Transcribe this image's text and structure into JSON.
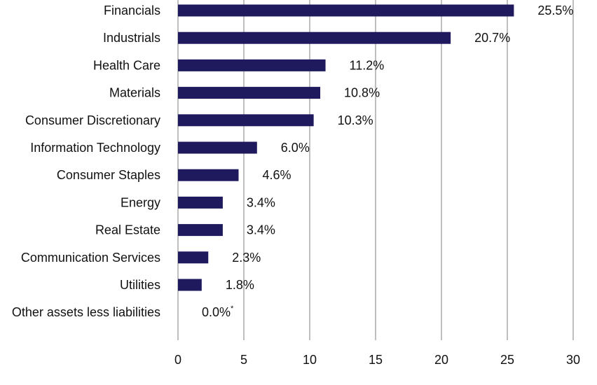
{
  "chart_data": {
    "type": "bar",
    "orientation": "horizontal",
    "categories": [
      "Financials",
      "Industrials",
      "Health Care",
      "Materials",
      "Consumer Discretionary",
      "Information Technology",
      "Consumer Staples",
      "Energy",
      "Real Estate",
      "Communication Services",
      "Utilities",
      "Other assets less liabilities"
    ],
    "values": [
      25.5,
      20.7,
      11.2,
      10.8,
      10.3,
      6.0,
      4.6,
      3.4,
      3.4,
      2.3,
      1.8,
      0.0
    ],
    "value_labels": [
      "25.5%",
      "20.7%",
      "11.2%",
      "10.8%",
      "10.3%",
      "6.0%",
      "4.6%",
      "3.4%",
      "3.4%",
      "2.3%",
      "1.8%",
      "0.0%"
    ],
    "footnote_marks": [
      "",
      "",
      "",
      "",
      "",
      "",
      "",
      "",
      "",
      "",
      "",
      "*"
    ],
    "xticks": [
      0,
      5,
      10,
      15,
      20,
      25,
      30
    ],
    "xlim": [
      0,
      30
    ],
    "title": "",
    "xlabel": "",
    "ylabel": "",
    "grid": "vertical",
    "legend": "none",
    "colors": {
      "bar": "#1f1a5e",
      "grid": "#bfbfbf",
      "text": "#111111"
    }
  }
}
